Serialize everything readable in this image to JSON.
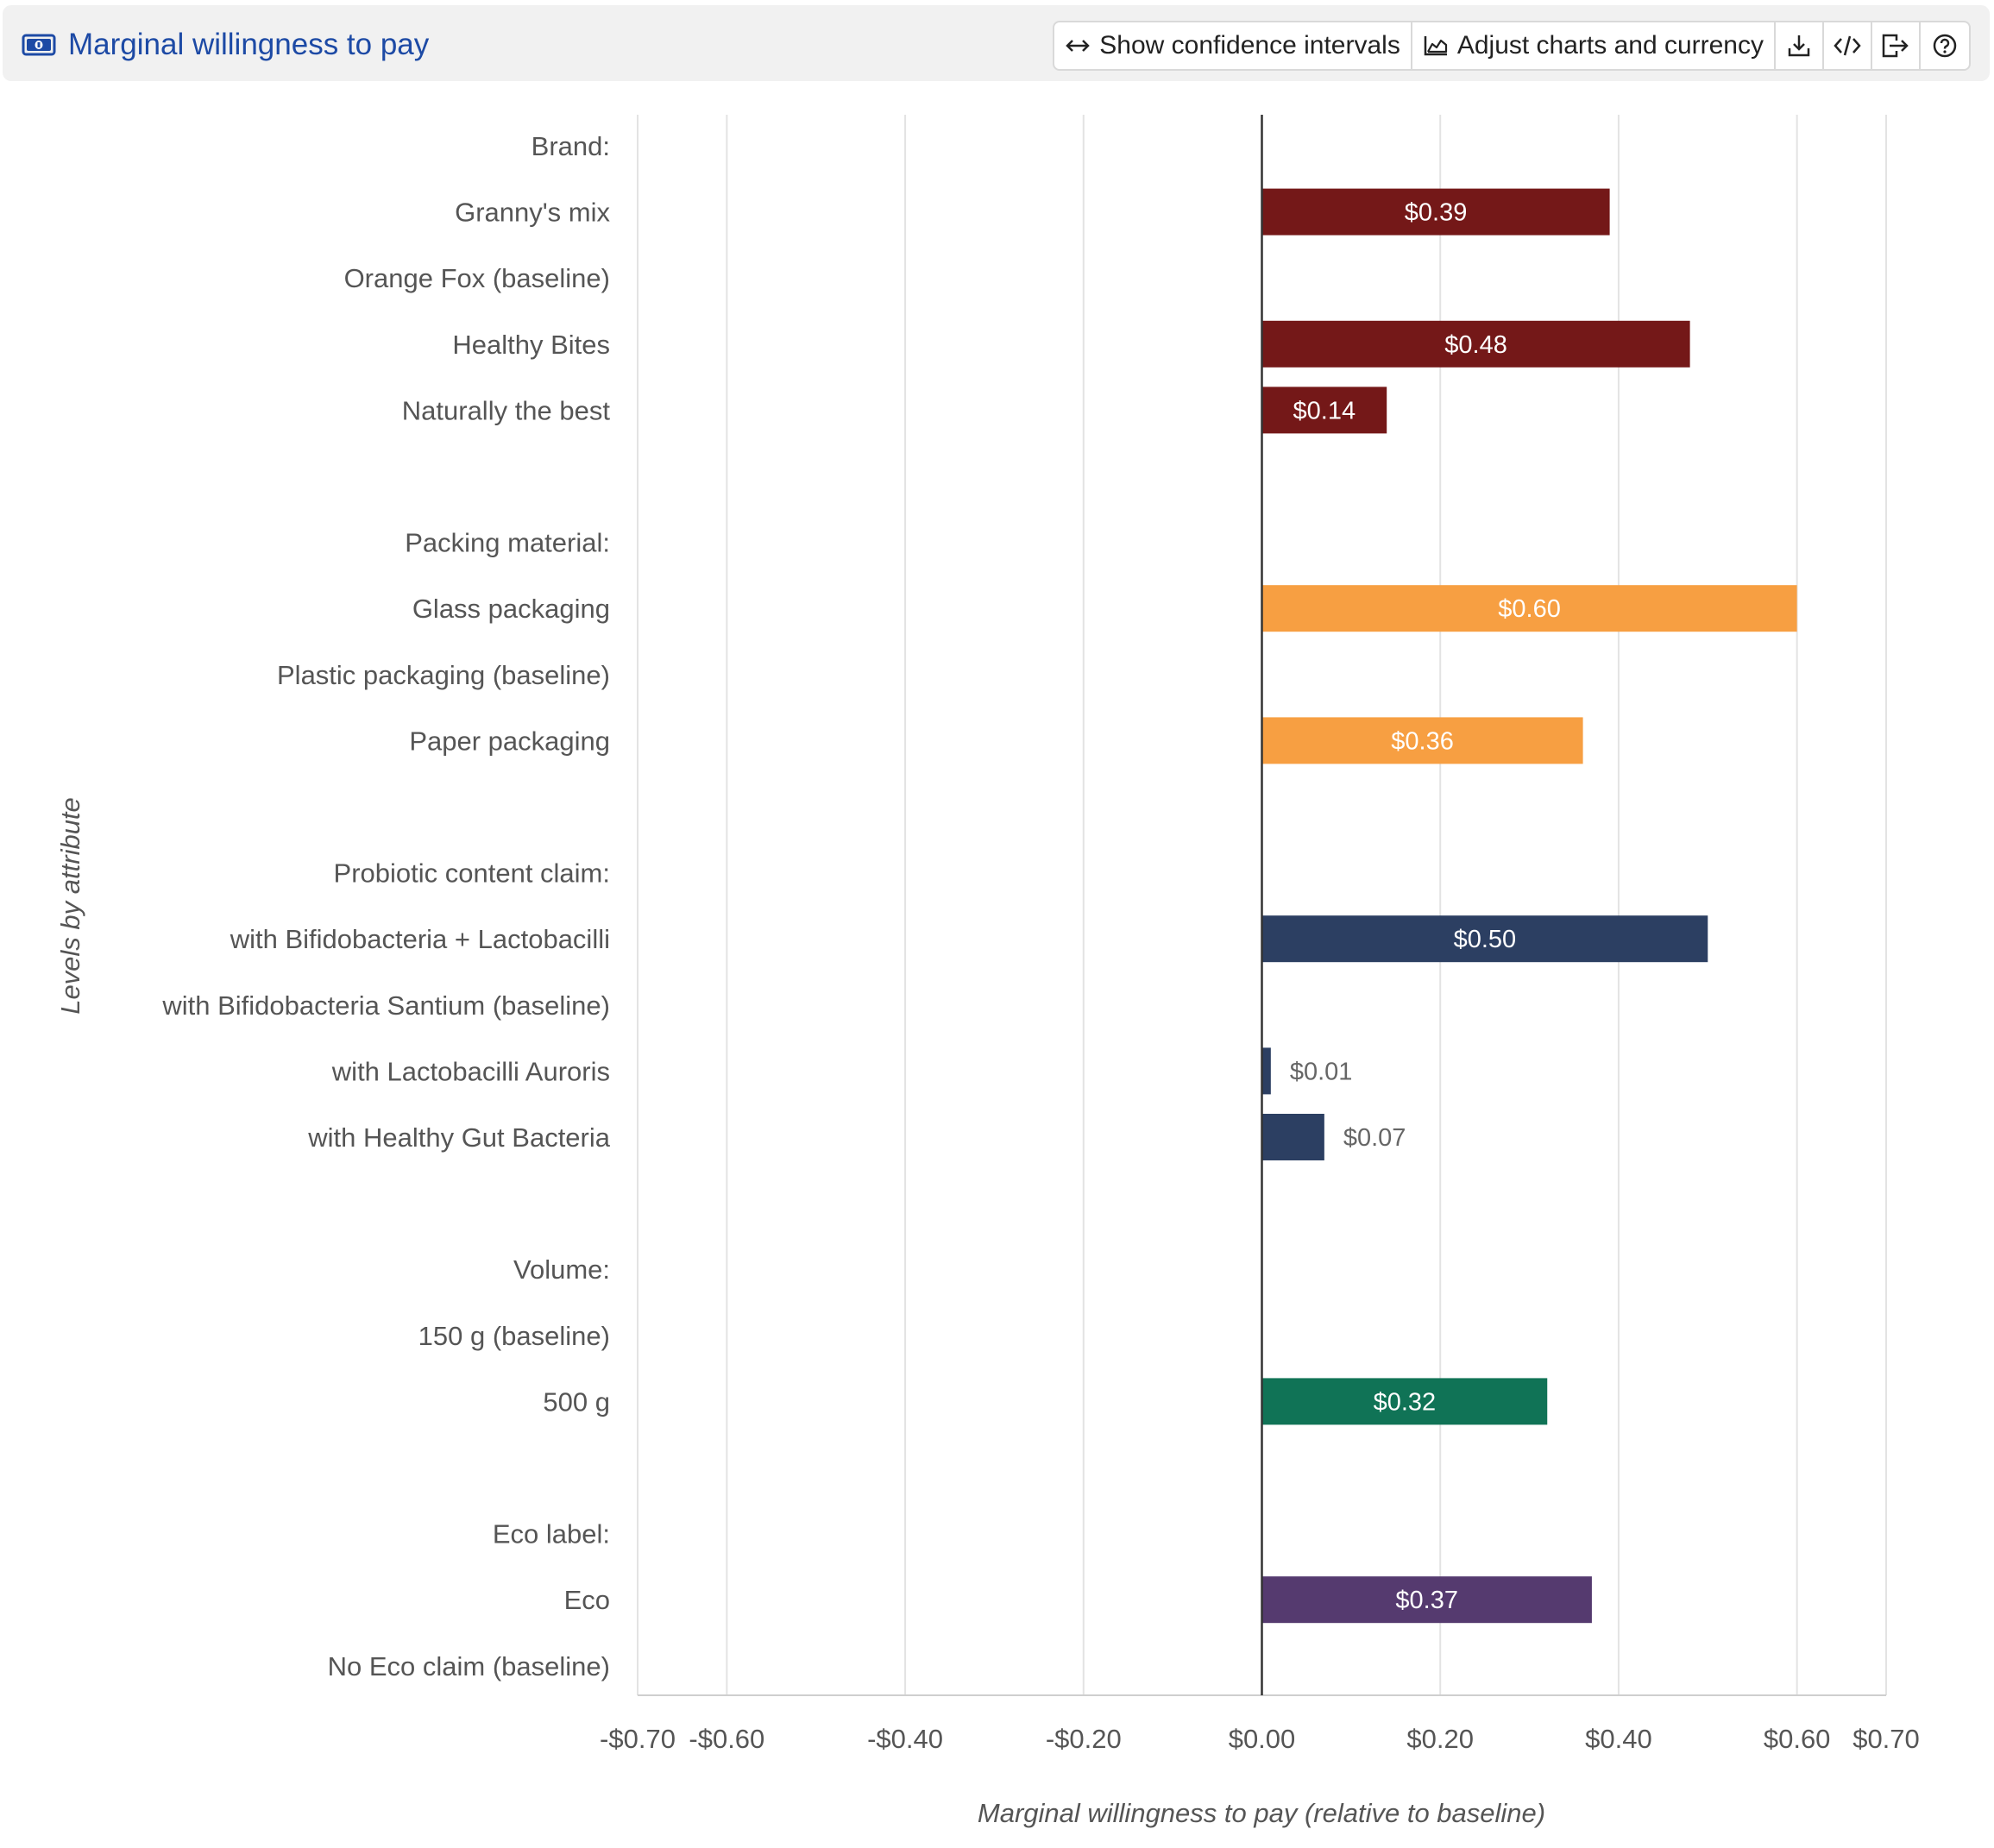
{
  "header": {
    "title": "Marginal willingness to pay",
    "title_icon": "money-icon",
    "buttons": {
      "show_ci": "Show confidence intervals",
      "adjust": "Adjust charts and currency"
    },
    "icon_buttons": [
      "download-icon",
      "embed-code-icon",
      "export-icon",
      "help-icon"
    ]
  },
  "chart_data": {
    "type": "bar",
    "orientation": "horizontal",
    "xlabel": "Marginal willingness to pay (relative to baseline)",
    "ylabel": "Levels by attribute",
    "xlim": [
      -0.7,
      0.7
    ],
    "xticks": [
      -0.7,
      -0.6,
      -0.4,
      -0.2,
      0.0,
      0.2,
      0.4,
      0.6,
      0.7
    ],
    "xtick_labels": [
      "-$0.70",
      "-$0.60",
      "-$0.40",
      "-$0.20",
      "$0.00",
      "$0.20",
      "$0.40",
      "$0.60",
      "$0.70"
    ],
    "grid": true,
    "colors": {
      "Brand": "#741818",
      "Packing material": "#f79f42",
      "Probiotic content claim": "#2c3f62",
      "Volume": "#107356",
      "Eco label": "#553a6f"
    },
    "rows": [
      {
        "label": "Brand:",
        "header": true
      },
      {
        "label": "Granny's mix",
        "value": 0.39,
        "value_label": "$0.39",
        "group": "Brand"
      },
      {
        "label": "Orange Fox (baseline)",
        "value": null,
        "group": "Brand"
      },
      {
        "label": "Healthy Bites",
        "value": 0.48,
        "value_label": "$0.48",
        "group": "Brand"
      },
      {
        "label": "Naturally the best",
        "value": 0.14,
        "value_label": "$0.14",
        "group": "Brand"
      },
      {
        "label": "",
        "spacer": true
      },
      {
        "label": "Packing material:",
        "header": true
      },
      {
        "label": "Glass packaging",
        "value": 0.6,
        "value_label": "$0.60",
        "group": "Packing material"
      },
      {
        "label": "Plastic packaging (baseline)",
        "value": null,
        "group": "Packing material"
      },
      {
        "label": "Paper packaging",
        "value": 0.36,
        "value_label": "$0.36",
        "group": "Packing material"
      },
      {
        "label": "",
        "spacer": true
      },
      {
        "label": "Probiotic content claim:",
        "header": true
      },
      {
        "label": "with Bifidobacteria + Lactobacilli",
        "value": 0.5,
        "value_label": "$0.50",
        "group": "Probiotic content claim"
      },
      {
        "label": "with Bifidobacteria Santium (baseline)",
        "value": null,
        "group": "Probiotic content claim"
      },
      {
        "label": "with Lactobacilli Auroris",
        "value": 0.01,
        "value_label": "$0.01",
        "group": "Probiotic content claim"
      },
      {
        "label": "with Healthy Gut Bacteria",
        "value": 0.07,
        "value_label": "$0.07",
        "group": "Probiotic content claim"
      },
      {
        "label": "",
        "spacer": true
      },
      {
        "label": "Volume:",
        "header": true
      },
      {
        "label": "150 g (baseline)",
        "value": null,
        "group": "Volume"
      },
      {
        "label": "500 g",
        "value": 0.32,
        "value_label": "$0.32",
        "group": "Volume"
      },
      {
        "label": "",
        "spacer": true
      },
      {
        "label": "Eco label:",
        "header": true
      },
      {
        "label": "Eco",
        "value": 0.37,
        "value_label": "$0.37",
        "group": "Eco label"
      },
      {
        "label": "No Eco claim (baseline)",
        "value": null,
        "group": "Eco label"
      }
    ]
  }
}
